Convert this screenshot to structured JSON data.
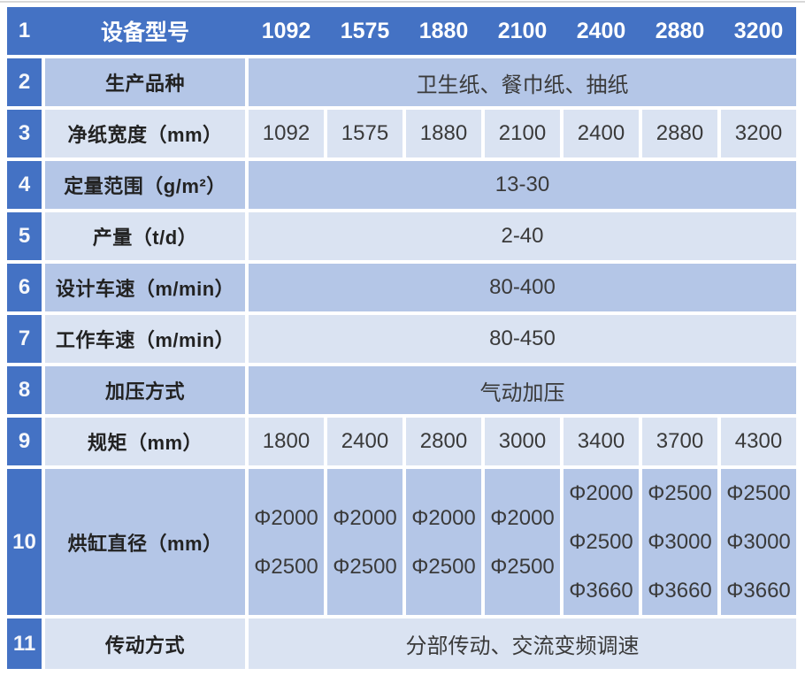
{
  "colors": {
    "header_blue": "#4472C4",
    "band_dark": "#B4C6E7",
    "band_light": "#DAE3F2",
    "header_text": "#FFFFFF",
    "body_text": "#3A3A3A"
  },
  "header": {
    "num": "1",
    "label": "设备型号",
    "cols": [
      "1092",
      "1575",
      "1880",
      "2100",
      "2400",
      "2880",
      "3200"
    ]
  },
  "rows": [
    {
      "num": "2",
      "label": "生产品种",
      "value": "卫生纸、餐巾纸、抽纸"
    },
    {
      "num": "3",
      "label": "净纸宽度（mm）",
      "cells": [
        "1092",
        "1575",
        "1880",
        "2100",
        "2400",
        "2880",
        "3200"
      ]
    },
    {
      "num": "4",
      "label": "定量范围（g/m²）",
      "value": "13-30"
    },
    {
      "num": "5",
      "label": "产量（t/d）",
      "value": "2-40"
    },
    {
      "num": "6",
      "label": "设计车速（m/min）",
      "value": "80-400"
    },
    {
      "num": "7",
      "label": "工作车速（m/min）",
      "value": "80-450"
    },
    {
      "num": "8",
      "label": "加压方式",
      "value": "气动加压"
    },
    {
      "num": "9",
      "label": "规矩（mm）",
      "cells": [
        "1800",
        "2400",
        "2800",
        "3000",
        "3400",
        "3700",
        "4300"
      ]
    },
    {
      "num": "10",
      "label": "烘缸直径（mm）",
      "cells": [
        [
          "Φ2000",
          "Φ2500"
        ],
        [
          "Φ2000",
          "Φ2500"
        ],
        [
          "Φ2000",
          "Φ2500"
        ],
        [
          "Φ2000",
          "Φ2500"
        ],
        [
          "Φ2000",
          "Φ2500",
          "Φ3660"
        ],
        [
          "Φ2500",
          "Φ3000",
          "Φ3660"
        ],
        [
          "Φ2500",
          "Φ3000",
          "Φ3660"
        ]
      ]
    },
    {
      "num": "11",
      "label": "传动方式",
      "value": "分部传动、交流变频调速"
    }
  ]
}
